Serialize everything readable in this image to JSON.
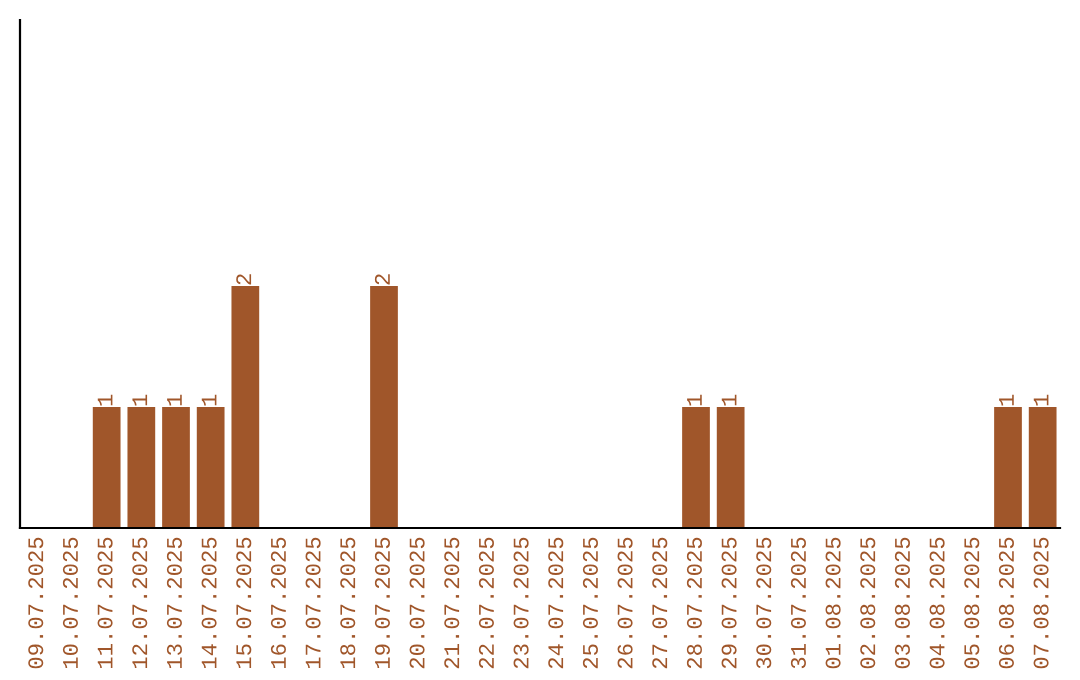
{
  "chart_data": {
    "type": "bar",
    "categories": [
      "09.07.2025",
      "10.07.2025",
      "11.07.2025",
      "12.07.2025",
      "13.07.2025",
      "14.07.2025",
      "15.07.2025",
      "16.07.2025",
      "17.07.2025",
      "18.07.2025",
      "19.07.2025",
      "20.07.2025",
      "21.07.2025",
      "22.07.2025",
      "23.07.2025",
      "24.07.2025",
      "25.07.2025",
      "26.07.2025",
      "27.07.2025",
      "28.07.2025",
      "29.07.2025",
      "30.07.2025",
      "31.07.2025",
      "01.08.2025",
      "02.08.2025",
      "03.08.2025",
      "04.08.2025",
      "05.08.2025",
      "06.08.2025",
      "07.08.2025"
    ],
    "values": [
      0,
      0,
      1,
      1,
      1,
      1,
      2,
      0,
      0,
      0,
      2,
      0,
      0,
      0,
      0,
      0,
      0,
      0,
      0,
      1,
      1,
      0,
      0,
      0,
      0,
      0,
      0,
      0,
      1,
      1
    ],
    "value_labels": [
      null,
      null,
      "1",
      "1",
      "1",
      "1",
      "2",
      null,
      null,
      null,
      "2",
      null,
      null,
      null,
      null,
      null,
      null,
      null,
      null,
      "1",
      "1",
      null,
      null,
      null,
      null,
      null,
      null,
      null,
      "1",
      "1"
    ],
    "color": "#a0562a",
    "ylim": [
      0,
      4.2
    ],
    "tick_labels": "x",
    "grid": false,
    "legend": false
  }
}
